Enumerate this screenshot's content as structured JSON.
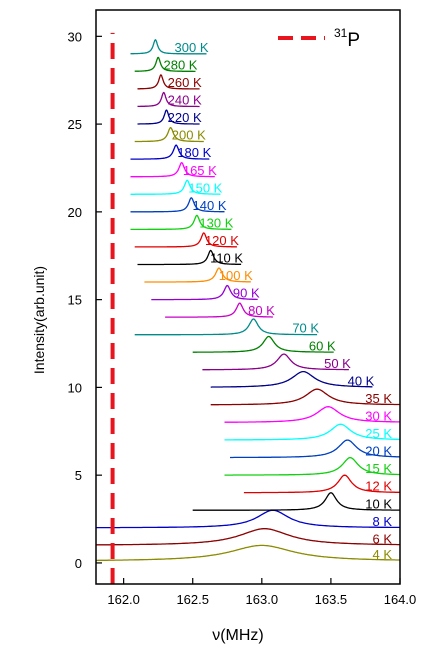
{
  "chart_data": {
    "type": "line",
    "title": "",
    "xlabel": "ν(MHz)",
    "ylabel": "Intensity(arb.unit)",
    "xlim": [
      161.8,
      164.0
    ],
    "ylim": [
      -1.2,
      31.5
    ],
    "xticks": [
      162.0,
      162.5,
      163.0,
      163.5,
      164.0
    ],
    "xtick_labels": [
      "162.0",
      "162.5",
      "163.0",
      "163.5",
      "164.0"
    ],
    "yticks": [
      0,
      5,
      10,
      15,
      20,
      25,
      30
    ],
    "ytick_labels": [
      "0",
      "5",
      "10",
      "15",
      "20",
      "25",
      "30"
    ],
    "grid": false,
    "legend": {
      "position": "top-right",
      "entries": [
        {
          "name": "31P",
          "sup": "31",
          "base": "P",
          "color": "#e8141e",
          "style": "dashed",
          "x": 161.92
        }
      ]
    },
    "series": [
      {
        "name": "4 K",
        "color": "#8b8b00",
        "baseline": 0.1,
        "peak": 163.0,
        "height": 0.9,
        "width": 0.28,
        "x_start": 161.8,
        "x_end": 164.0
      },
      {
        "name": "6 K",
        "color": "#8b0000",
        "baseline": 1.0,
        "peak": 163.02,
        "height": 0.95,
        "width": 0.22,
        "x_start": 161.8,
        "x_end": 164.0
      },
      {
        "name": "8 K",
        "color": "#0000c8",
        "baseline": 2.0,
        "peak": 163.08,
        "height": 1.0,
        "width": 0.14,
        "x_start": 161.8,
        "x_end": 164.0
      },
      {
        "name": "10 K",
        "color": "#000000",
        "baseline": 3.0,
        "peak": 163.5,
        "height": 1.0,
        "width": 0.05,
        "x_start": 162.5,
        "x_end": 164.0
      },
      {
        "name": "12 K",
        "color": "#e00000",
        "baseline": 4.0,
        "peak": 163.6,
        "height": 1.0,
        "width": 0.06,
        "x_start": 162.87,
        "x_end": 164.0
      },
      {
        "name": "15 K",
        "color": "#10d010",
        "baseline": 5.0,
        "peak": 163.64,
        "height": 1.0,
        "width": 0.07,
        "x_start": 162.73,
        "x_end": 164.0
      },
      {
        "name": "20 K",
        "color": "#0040c0",
        "baseline": 6.0,
        "peak": 163.62,
        "height": 1.0,
        "width": 0.08,
        "x_start": 162.77,
        "x_end": 164.0
      },
      {
        "name": "25 K",
        "color": "#00ffff",
        "baseline": 7.0,
        "peak": 163.57,
        "height": 0.9,
        "width": 0.09,
        "x_start": 162.73,
        "x_end": 164.0
      },
      {
        "name": "30 K",
        "color": "#ff00ff",
        "baseline": 8.0,
        "peak": 163.48,
        "height": 0.9,
        "width": 0.1,
        "x_start": 162.73,
        "x_end": 164.0
      },
      {
        "name": "35 K",
        "color": "#8b0000",
        "baseline": 9.0,
        "peak": 163.4,
        "height": 0.9,
        "width": 0.1,
        "x_start": 162.63,
        "x_end": 164.0
      },
      {
        "name": "40 K",
        "color": "#00008b",
        "baseline": 10.0,
        "peak": 163.3,
        "height": 0.9,
        "width": 0.1,
        "x_start": 162.63,
        "x_end": 163.8
      },
      {
        "name": "50 K",
        "color": "#8b008b",
        "baseline": 11.0,
        "peak": 163.16,
        "height": 0.9,
        "width": 0.06,
        "x_start": 162.57,
        "x_end": 163.63
      },
      {
        "name": "60 K",
        "color": "#008000",
        "baseline": 12.0,
        "peak": 163.05,
        "height": 0.9,
        "width": 0.05,
        "x_start": 162.5,
        "x_end": 163.52
      },
      {
        "name": "70 K",
        "color": "#008b8b",
        "baseline": 13.0,
        "peak": 162.94,
        "height": 0.9,
        "width": 0.04,
        "x_start": 162.08,
        "x_end": 163.4
      },
      {
        "name": "80 K",
        "color": "#c800c8",
        "baseline": 14.0,
        "peak": 162.84,
        "height": 0.8,
        "width": 0.03,
        "x_start": 162.3,
        "x_end": 163.08
      },
      {
        "name": "90 K",
        "color": "#9400d3",
        "baseline": 15.0,
        "peak": 162.75,
        "height": 0.8,
        "width": 0.03,
        "x_start": 162.2,
        "x_end": 162.97
      },
      {
        "name": "100 K",
        "color": "#ff8c00",
        "baseline": 16.0,
        "peak": 162.69,
        "height": 0.8,
        "width": 0.03,
        "x_start": 162.15,
        "x_end": 162.92
      },
      {
        "name": "110 K",
        "color": "#000000",
        "baseline": 17.0,
        "peak": 162.63,
        "height": 0.8,
        "width": 0.025,
        "x_start": 162.1,
        "x_end": 162.85
      },
      {
        "name": "120 K",
        "color": "#e00000",
        "baseline": 18.0,
        "peak": 162.58,
        "height": 0.8,
        "width": 0.025,
        "x_start": 162.08,
        "x_end": 162.82
      },
      {
        "name": "130 K",
        "color": "#10d010",
        "baseline": 19.0,
        "peak": 162.53,
        "height": 0.8,
        "width": 0.025,
        "x_start": 162.05,
        "x_end": 162.78
      },
      {
        "name": "140 K",
        "color": "#0040c0",
        "baseline": 20.0,
        "peak": 162.49,
        "height": 0.8,
        "width": 0.025,
        "x_start": 162.05,
        "x_end": 162.73
      },
      {
        "name": "150 K",
        "color": "#00ffff",
        "baseline": 21.0,
        "peak": 162.46,
        "height": 0.8,
        "width": 0.025,
        "x_start": 162.05,
        "x_end": 162.7
      },
      {
        "name": "165 K",
        "color": "#ff00ff",
        "baseline": 22.0,
        "peak": 162.42,
        "height": 0.8,
        "width": 0.025,
        "x_start": 162.05,
        "x_end": 162.66
      },
      {
        "name": "180 K",
        "color": "#0000c8",
        "baseline": 23.0,
        "peak": 162.38,
        "height": 0.8,
        "width": 0.025,
        "x_start": 162.05,
        "x_end": 162.62
      },
      {
        "name": "200 K",
        "color": "#8b8b00",
        "baseline": 24.0,
        "peak": 162.34,
        "height": 0.8,
        "width": 0.025,
        "x_start": 162.08,
        "x_end": 162.58
      },
      {
        "name": "220 K",
        "color": "#00008b",
        "baseline": 25.0,
        "peak": 162.31,
        "height": 0.8,
        "width": 0.02,
        "x_start": 162.1,
        "x_end": 162.55
      },
      {
        "name": "240 K",
        "color": "#8b008b",
        "baseline": 26.0,
        "peak": 162.29,
        "height": 0.8,
        "width": 0.02,
        "x_start": 162.1,
        "x_end": 162.55
      },
      {
        "name": "260 K",
        "color": "#8b0000",
        "baseline": 27.0,
        "peak": 162.27,
        "height": 0.8,
        "width": 0.02,
        "x_start": 162.1,
        "x_end": 162.55
      },
      {
        "name": "280 K",
        "color": "#008000",
        "baseline": 28.0,
        "peak": 162.25,
        "height": 0.8,
        "width": 0.02,
        "x_start": 162.08,
        "x_end": 162.52
      },
      {
        "name": "300 K",
        "color": "#008b8b",
        "baseline": 29.0,
        "peak": 162.23,
        "height": 0.8,
        "width": 0.02,
        "x_start": 162.05,
        "x_end": 162.6
      }
    ]
  }
}
